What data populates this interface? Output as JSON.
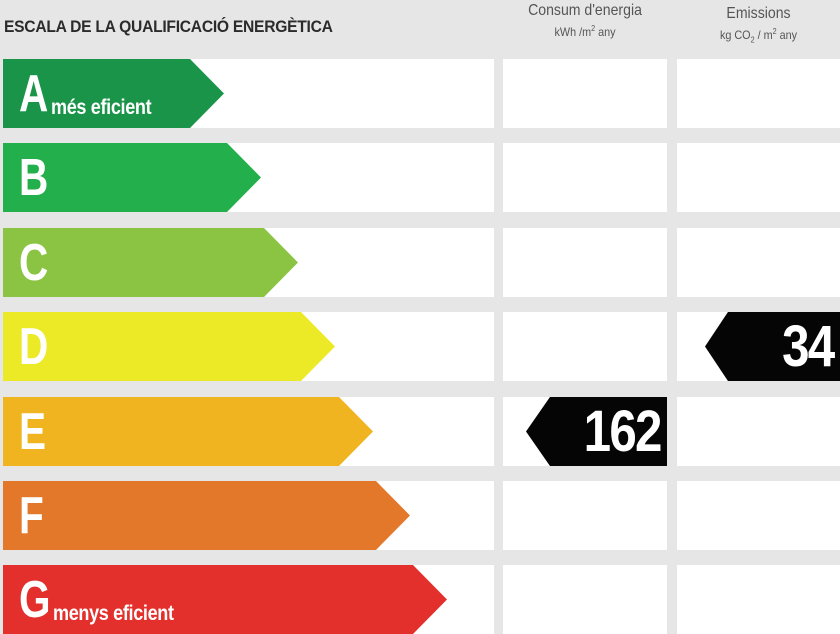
{
  "title": "ESCALA DE LA QUALIFICACIÓ ENERGÈTICA",
  "columns": {
    "consum": {
      "title": "Consum d'energia",
      "unit_prefix": "kWh /m",
      "unit_sup": "2",
      "unit_suffix": " any"
    },
    "emissions": {
      "title": "Emissions",
      "unit_prefix": "kg CO",
      "unit_sub": "2",
      "unit_mid": " / m",
      "unit_sup": "2",
      "unit_suffix": " any"
    }
  },
  "ratings": [
    {
      "letter": "A",
      "desc": "més eficient",
      "color": "#1a9448",
      "width": 221
    },
    {
      "letter": "B",
      "desc": "",
      "color": "#23af4b",
      "width": 258
    },
    {
      "letter": "C",
      "desc": "",
      "color": "#8bc443",
      "width": 295
    },
    {
      "letter": "D",
      "desc": "",
      "color": "#ecea27",
      "width": 332
    },
    {
      "letter": "E",
      "desc": "",
      "color": "#f0b420",
      "width": 370
    },
    {
      "letter": "F",
      "desc": "",
      "color": "#e4782a",
      "width": 407
    },
    {
      "letter": "G",
      "desc": "menys eficient",
      "color": "#e3302c",
      "width": 444
    }
  ],
  "consum_value": {
    "value": "162",
    "rating": "E"
  },
  "emissions_value": {
    "value": "34",
    "rating": "D"
  }
}
